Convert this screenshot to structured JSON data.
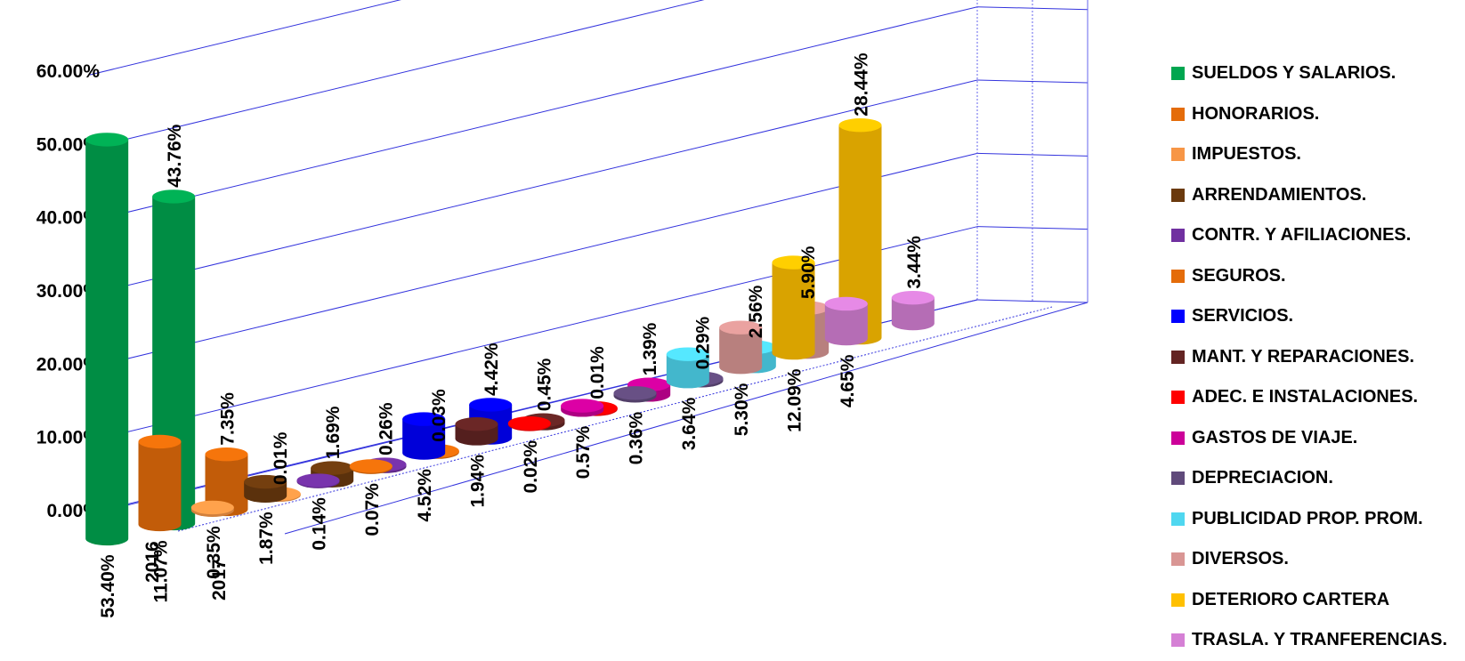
{
  "chart_data": {
    "type": "bar",
    "ylim": [
      0,
      60
    ],
    "y_ticks": [
      "0.00%",
      "10.00%",
      "20.00%",
      "30.00%",
      "40.00%",
      "50.00%",
      "60.00%"
    ],
    "x_categories": [
      "2016",
      "2017"
    ],
    "grid": true,
    "legend_position": "right",
    "series": [
      {
        "name": "SUELDOS Y SALARIOS.",
        "color": "#00A650",
        "values": [
          43.76,
          53.4
        ],
        "labels": [
          "43.76%",
          "53.40%"
        ]
      },
      {
        "name": "HONORARIOS.",
        "color": "#E46C0A",
        "values": [
          7.35,
          11.07
        ],
        "labels": [
          "7.35%",
          "11.07%"
        ]
      },
      {
        "name": "IMPUESTOS.",
        "color": "#F79646",
        "values": [
          0.01,
          0.35
        ],
        "labels": [
          "0.01%",
          "0.35%"
        ]
      },
      {
        "name": "ARRENDAMIENTOS.",
        "color": "#6B3A0E",
        "values": [
          1.69,
          1.87
        ],
        "labels": [
          "1.69%",
          "1.87%"
        ]
      },
      {
        "name": "CONTR. Y AFILIACIONES.",
        "color": "#7030A0",
        "values": [
          0.26,
          0.14
        ],
        "labels": [
          "0.26%",
          "0.14%"
        ]
      },
      {
        "name": "SEGUROS.",
        "color": "#E46C0A",
        "values": [
          0.03,
          0.07
        ],
        "labels": [
          "0.03%",
          "0.07%"
        ]
      },
      {
        "name": "SERVICIOS.",
        "color": "#0000FF",
        "values": [
          4.42,
          4.52
        ],
        "labels": [
          "4.42%",
          "4.52%"
        ]
      },
      {
        "name": "MANT. Y REPARACIONES.",
        "color": "#632423",
        "values": [
          0.45,
          1.94
        ],
        "labels": [
          "0.45%",
          "1.94%"
        ]
      },
      {
        "name": "ADEC. E INSTALACIONES.",
        "color": "#FF0000",
        "values": [
          0.01,
          0.02
        ],
        "labels": [
          "0.01%",
          "0.02%"
        ]
      },
      {
        "name": "GASTOS DE VIAJE.",
        "color": "#CC0099",
        "values": [
          1.39,
          0.57
        ],
        "labels": [
          "1.39%",
          "0.57%"
        ]
      },
      {
        "name": "DEPRECIACION.",
        "color": "#604A7B",
        "values": [
          0.29,
          0.36
        ],
        "labels": [
          "0.29%",
          "0.36%"
        ]
      },
      {
        "name": "PUBLICIDAD PROP. PROM.",
        "color": "#4FD7F0",
        "values": [
          2.56,
          3.64
        ],
        "labels": [
          "2.56%",
          "3.64%"
        ]
      },
      {
        "name": "DIVERSOS.",
        "color": "#D99694",
        "values": [
          5.9,
          5.3
        ],
        "labels": [
          "5.90%",
          "5.30%"
        ]
      },
      {
        "name": "DETERIORO CARTERA",
        "color": "#FFC000",
        "values": [
          28.44,
          12.09
        ],
        "labels": [
          "28.44%",
          "12.09%"
        ]
      },
      {
        "name": "TRASLA. Y TRANFERENCIAS.",
        "color": "#D580D5",
        "values": [
          3.44,
          4.65
        ],
        "labels": [
          "3.44%",
          "4.65%"
        ]
      }
    ]
  }
}
